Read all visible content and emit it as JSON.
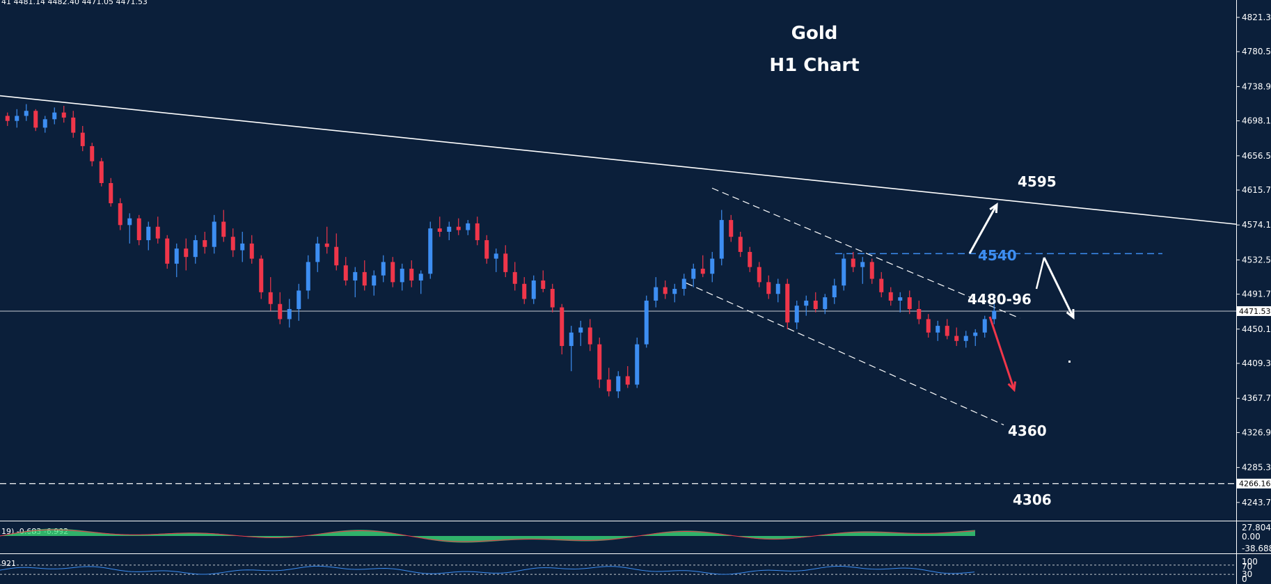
{
  "header": {
    "ohlc_text": "41  4481.14 4482.40 4471.05 4471.53",
    "title_line1": "Gold",
    "title_line2": "H1 Chart"
  },
  "colors": {
    "background": "#0b1f3a",
    "bull": "#3d8ef2",
    "bear": "#f0364a",
    "osc_hist": "#3ce37a",
    "osc_signal": "#f0364a",
    "rsi_line": "#3d8ef2",
    "arrow_down": "#f0364a",
    "arrow_white": "#ffffff",
    "level_blue": "#3d8ef2"
  },
  "chart_data": {
    "type": "candlestick",
    "instrument": "Gold",
    "timeframe": "H1",
    "title": "Gold H1 Chart",
    "ylim": [
      4222,
      4842
    ],
    "y_ticks": [
      "4821.30",
      "4780.50",
      "4738.90",
      "4698.10",
      "4656.50",
      "4615.70",
      "4574.10",
      "4532.50",
      "4491.70",
      "4450.10",
      "4409.30",
      "4367.70",
      "4326.90",
      "4285.30",
      "4243.70"
    ],
    "current_price": {
      "value": 4471.53,
      "label": "4471.53"
    },
    "support_line": {
      "value": 4266.16,
      "label": "4266.16"
    },
    "candles": [
      [
        4704,
        4708,
        4692,
        4698
      ],
      [
        4698,
        4712,
        4690,
        4704
      ],
      [
        4704,
        4718,
        4698,
        4710
      ],
      [
        4710,
        4712,
        4686,
        4690
      ],
      [
        4690,
        4704,
        4684,
        4700
      ],
      [
        4700,
        4714,
        4694,
        4708
      ],
      [
        4708,
        4716,
        4696,
        4702
      ],
      [
        4702,
        4710,
        4678,
        4684
      ],
      [
        4684,
        4692,
        4662,
        4668
      ],
      [
        4668,
        4672,
        4644,
        4650
      ],
      [
        4650,
        4654,
        4620,
        4624
      ],
      [
        4624,
        4630,
        4596,
        4600
      ],
      [
        4600,
        4606,
        4568,
        4574
      ],
      [
        4574,
        4588,
        4552,
        4582
      ],
      [
        4582,
        4586,
        4550,
        4556
      ],
      [
        4556,
        4578,
        4544,
        4572
      ],
      [
        4572,
        4584,
        4552,
        4558
      ],
      [
        4558,
        4562,
        4522,
        4528
      ],
      [
        4528,
        4552,
        4512,
        4546
      ],
      [
        4546,
        4558,
        4520,
        4536
      ],
      [
        4536,
        4562,
        4528,
        4556
      ],
      [
        4556,
        4566,
        4540,
        4548
      ],
      [
        4548,
        4586,
        4540,
        4578
      ],
      [
        4578,
        4592,
        4554,
        4560
      ],
      [
        4560,
        4570,
        4536,
        4544
      ],
      [
        4544,
        4566,
        4530,
        4552
      ],
      [
        4552,
        4562,
        4528,
        4534
      ],
      [
        4534,
        4538,
        4486,
        4494
      ],
      [
        4494,
        4512,
        4472,
        4480
      ],
      [
        4480,
        4494,
        4456,
        4462
      ],
      [
        4462,
        4486,
        4452,
        4474
      ],
      [
        4474,
        4504,
        4460,
        4496
      ],
      [
        4496,
        4538,
        4486,
        4530
      ],
      [
        4530,
        4560,
        4518,
        4552
      ],
      [
        4552,
        4572,
        4540,
        4548
      ],
      [
        4548,
        4564,
        4520,
        4526
      ],
      [
        4526,
        4536,
        4502,
        4508
      ],
      [
        4508,
        4524,
        4488,
        4518
      ],
      [
        4518,
        4532,
        4496,
        4502
      ],
      [
        4502,
        4520,
        4490,
        4514
      ],
      [
        4514,
        4538,
        4506,
        4530
      ],
      [
        4530,
        4536,
        4500,
        4506
      ],
      [
        4506,
        4528,
        4496,
        4522
      ],
      [
        4522,
        4532,
        4500,
        4508
      ],
      [
        4508,
        4520,
        4492,
        4516
      ],
      [
        4516,
        4578,
        4510,
        4570
      ],
      [
        4570,
        4584,
        4560,
        4566
      ],
      [
        4566,
        4578,
        4556,
        4572
      ],
      [
        4572,
        4582,
        4562,
        4568
      ],
      [
        4568,
        4580,
        4562,
        4576
      ],
      [
        4576,
        4584,
        4550,
        4556
      ],
      [
        4556,
        4562,
        4528,
        4534
      ],
      [
        4534,
        4546,
        4518,
        4540
      ],
      [
        4540,
        4550,
        4512,
        4518
      ],
      [
        4518,
        4530,
        4496,
        4504
      ],
      [
        4504,
        4512,
        4480,
        4486
      ],
      [
        4486,
        4514,
        4480,
        4508
      ],
      [
        4508,
        4520,
        4494,
        4498
      ],
      [
        4498,
        4504,
        4470,
        4476
      ],
      [
        4476,
        4480,
        4420,
        4430
      ],
      [
        4430,
        4454,
        4400,
        4446
      ],
      [
        4446,
        4460,
        4430,
        4452
      ],
      [
        4452,
        4462,
        4424,
        4432
      ],
      [
        4432,
        4440,
        4380,
        4390
      ],
      [
        4390,
        4404,
        4370,
        4376
      ],
      [
        4376,
        4400,
        4368,
        4394
      ],
      [
        4394,
        4406,
        4380,
        4384
      ],
      [
        4384,
        4440,
        4380,
        4432
      ],
      [
        4432,
        4490,
        4428,
        4484
      ],
      [
        4484,
        4512,
        4476,
        4500
      ],
      [
        4500,
        4508,
        4486,
        4492
      ],
      [
        4492,
        4504,
        4482,
        4498
      ],
      [
        4498,
        4516,
        4490,
        4510
      ],
      [
        4510,
        4528,
        4500,
        4522
      ],
      [
        4522,
        4538,
        4512,
        4516
      ],
      [
        4516,
        4542,
        4506,
        4534
      ],
      [
        4534,
        4592,
        4526,
        4580
      ],
      [
        4580,
        4586,
        4554,
        4560
      ],
      [
        4560,
        4566,
        4536,
        4542
      ],
      [
        4542,
        4548,
        4518,
        4524
      ],
      [
        4524,
        4530,
        4500,
        4506
      ],
      [
        4506,
        4514,
        4486,
        4492
      ],
      [
        4492,
        4510,
        4482,
        4504
      ],
      [
        4504,
        4510,
        4450,
        4458
      ],
      [
        4458,
        4484,
        4450,
        4478
      ],
      [
        4478,
        4490,
        4466,
        4484
      ],
      [
        4484,
        4494,
        4470,
        4474
      ],
      [
        4474,
        4492,
        4468,
        4488
      ],
      [
        4488,
        4510,
        4480,
        4502
      ],
      [
        4502,
        4540,
        4496,
        4534
      ],
      [
        4534,
        4542,
        4518,
        4524
      ],
      [
        4524,
        4536,
        4504,
        4530
      ],
      [
        4530,
        4534,
        4504,
        4510
      ],
      [
        4510,
        4518,
        4488,
        4494
      ],
      [
        4494,
        4500,
        4478,
        4484
      ],
      [
        4484,
        4494,
        4470,
        4488
      ],
      [
        4488,
        4496,
        4468,
        4474
      ],
      [
        4474,
        4484,
        4456,
        4462
      ],
      [
        4462,
        4468,
        4440,
        4446
      ],
      [
        4446,
        4460,
        4436,
        4454
      ],
      [
        4454,
        4462,
        4438,
        4442
      ],
      [
        4442,
        4452,
        4430,
        4436
      ],
      [
        4436,
        4448,
        4428,
        4442
      ],
      [
        4442,
        4450,
        4430,
        4446
      ],
      [
        4446,
        4466,
        4440,
        4462
      ],
      [
        4462,
        4480,
        4456,
        4472
      ]
    ],
    "lines": [
      {
        "name": "long-term-trendline",
        "style": "solid",
        "from": [
          0,
          4728
        ],
        "to": [
          1.0,
          4575
        ]
      },
      {
        "name": "channel-upper",
        "style": "dashed",
        "from": [
          0.576,
          4618
        ],
        "to": [
          0.825,
          4463
        ]
      },
      {
        "name": "channel-lower",
        "style": "dashed",
        "from": [
          0.555,
          4505
        ],
        "to": [
          0.812,
          4336
        ]
      },
      {
        "name": "resistance-4540",
        "style": "dashed",
        "value": 4540
      }
    ],
    "level_labels": [
      {
        "text": "4595",
        "value": 4595
      },
      {
        "text": "4540",
        "value": 4540
      },
      {
        "text": "4480-96",
        "value": 4488
      },
      {
        "text": "4360",
        "value": 4360
      },
      {
        "text": "4306",
        "value": 4306
      }
    ],
    "indicators": [
      {
        "name": "oscillator",
        "header": "19) -0.683 -6.992",
        "scale": [
          "27.804",
          "0.00",
          "-38.688"
        ],
        "range": [
          -38.688,
          27.804
        ]
      },
      {
        "name": "rsi",
        "header": "921",
        "scale": [
          "100",
          "70",
          "30",
          "0"
        ],
        "range": [
          0,
          100
        ]
      }
    ]
  }
}
